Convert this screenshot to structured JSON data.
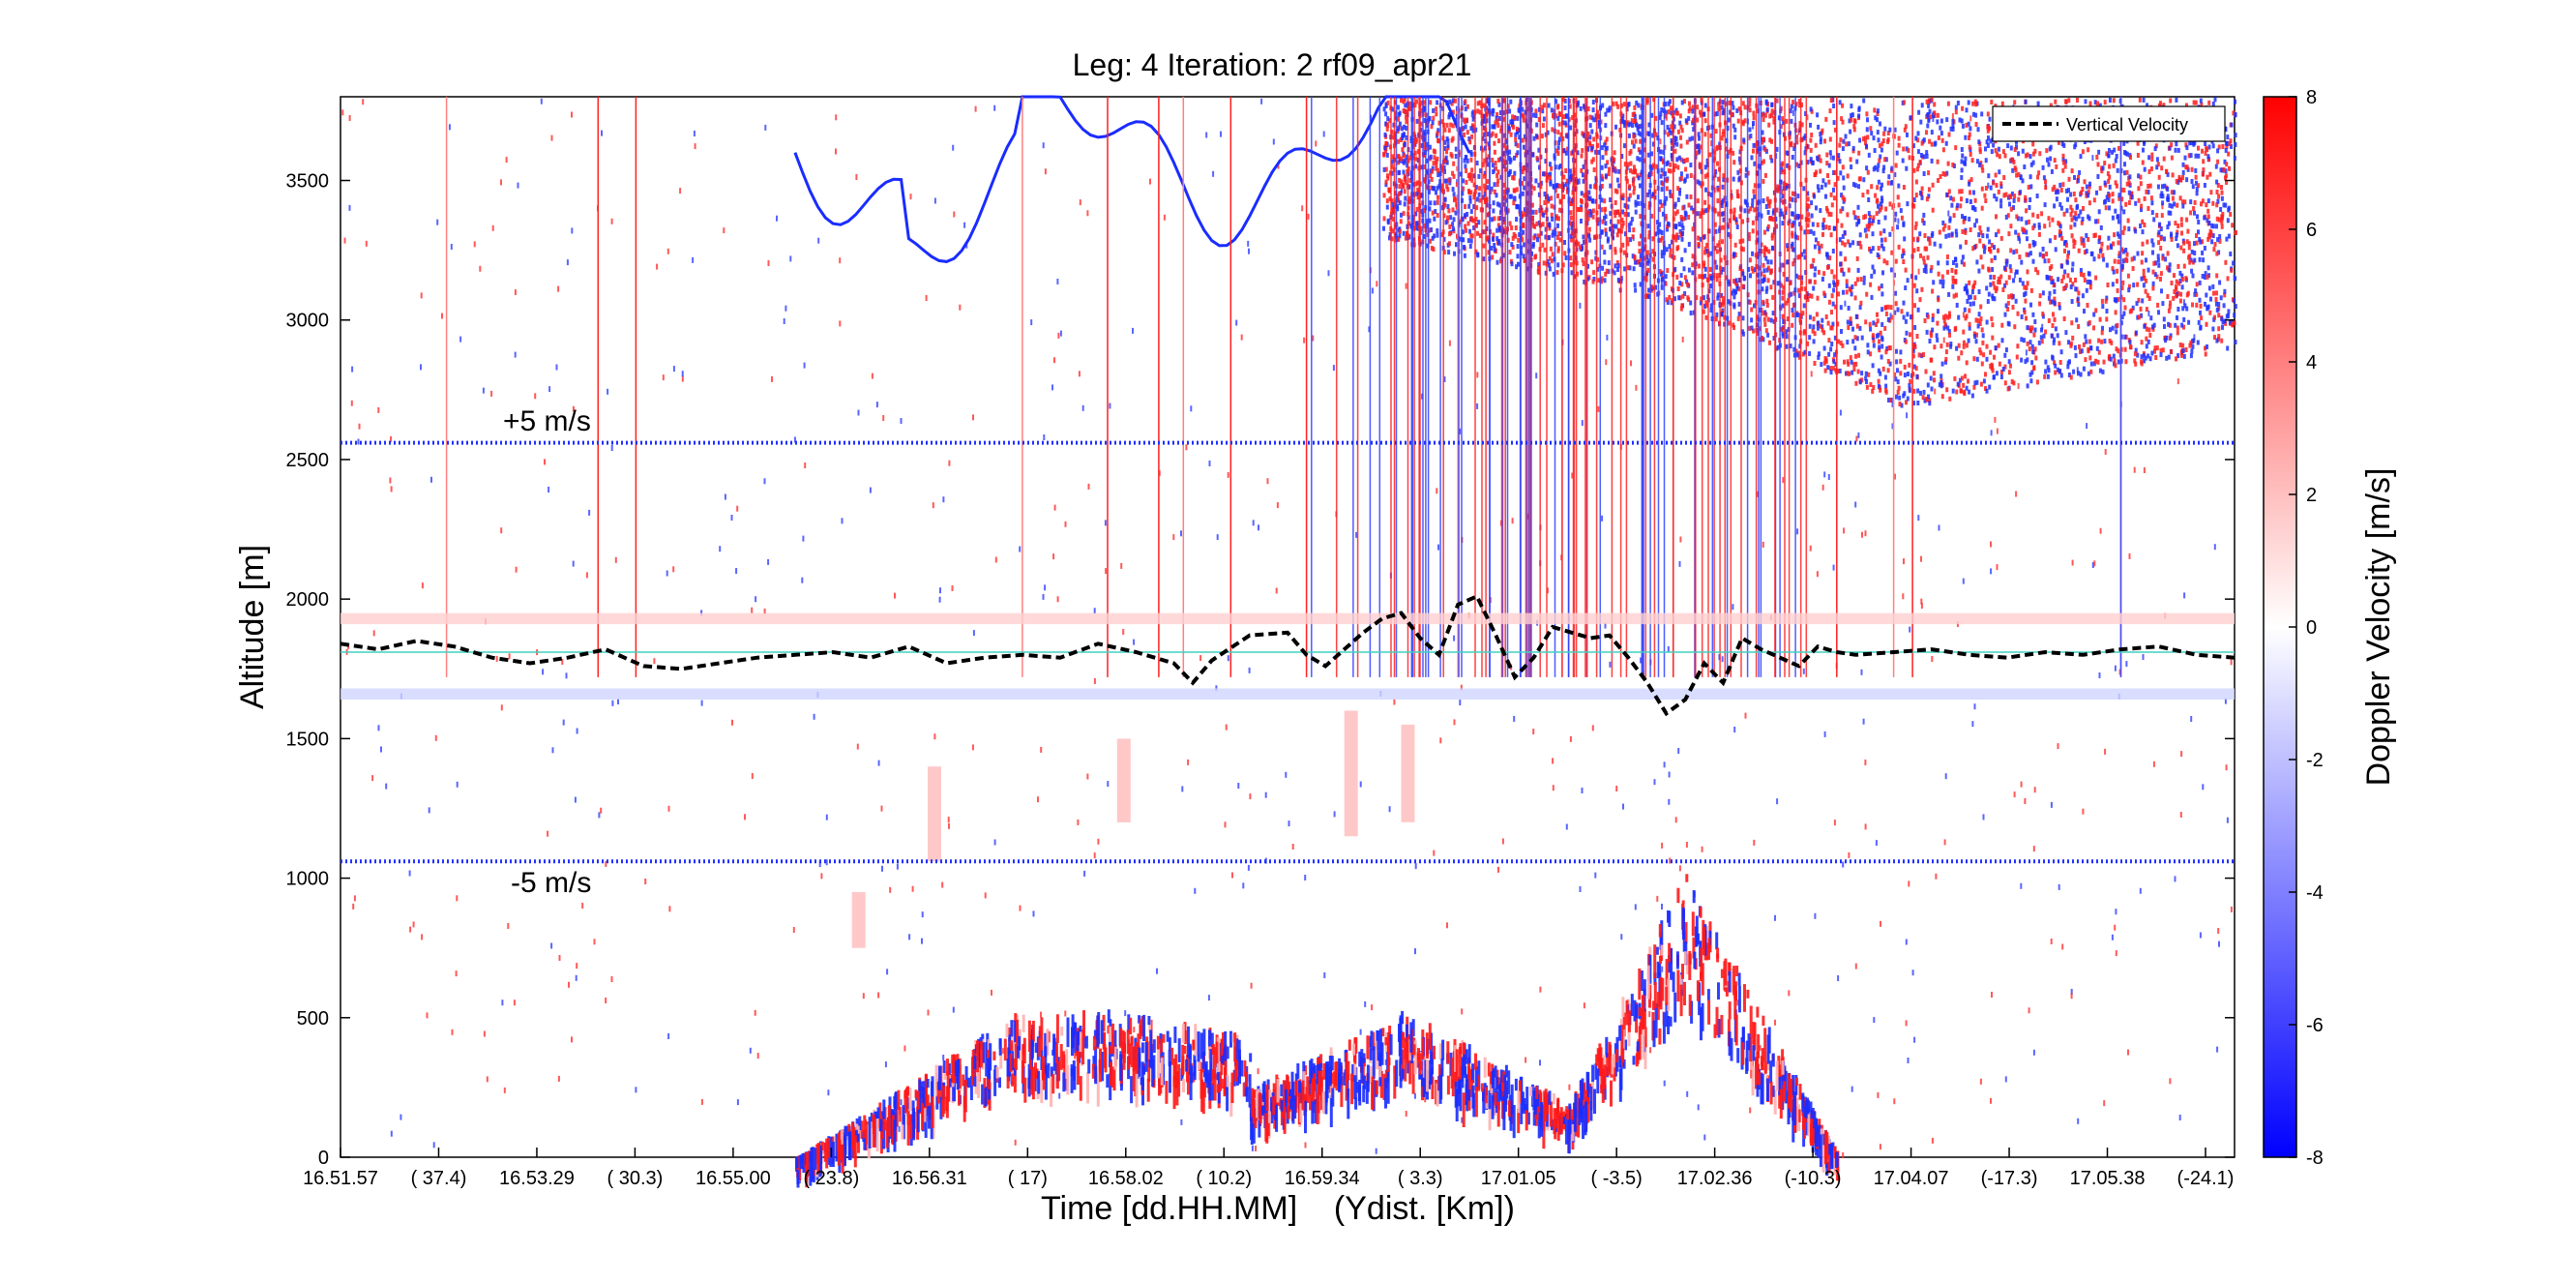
{
  "chart_data": {
    "type": "heatmap",
    "title": "Leg: 4  Iteration: 2  rf09_apr21",
    "xlabel": "Time [dd.HH.MM]    (Ydist. [Km])",
    "ylabel": "Altitude [m]",
    "x_ticks": [
      "16.51.57",
      "( 37.4)",
      "16.53.29",
      "( 30.3)",
      "16.55.00",
      "( 23.8)",
      "16.56.31",
      "(   17)",
      "16.58.02",
      "( 10.2)",
      "16.59.34",
      "(  3.3)",
      "17.01.05",
      "( -3.5)",
      "17.02.36",
      "(-10.3)",
      "17.04.07",
      "(-17.3)",
      "17.05.38",
      "(-24.1)"
    ],
    "y_ticks": [
      "0",
      "500",
      "1000",
      "1500",
      "2000",
      "2500",
      "3000",
      "3500"
    ],
    "ylim": [
      0,
      3800
    ],
    "colorbar": {
      "label": "Doppler Velocity [m/s]",
      "ticks": [
        "8",
        "6",
        "4",
        "2",
        "0",
        "-2",
        "-4",
        "-6",
        "-8"
      ],
      "range": [
        -8,
        8
      ],
      "colors": {
        "high": "#ff0000",
        "mid": "#ffffff",
        "low": "#0000ff"
      }
    },
    "legend": {
      "entries": [
        "Vertical Velocity"
      ],
      "placement": "top-right"
    },
    "annotations": [
      "+5 m/s",
      "-5 m/s"
    ],
    "reference_lines": {
      "upper_dotted_altitude": 2560,
      "lower_dotted_altitude": 1060,
      "flight_level_altitude": 1810
    },
    "vertical_velocity_series": {
      "name": "Vertical Velocity",
      "x_fraction": [
        0.0,
        0.02,
        0.04,
        0.06,
        0.08,
        0.1,
        0.12,
        0.14,
        0.16,
        0.18,
        0.2,
        0.22,
        0.24,
        0.26,
        0.28,
        0.3,
        0.32,
        0.34,
        0.36,
        0.38,
        0.4,
        0.42,
        0.44,
        0.45,
        0.46,
        0.48,
        0.5,
        0.51,
        0.52,
        0.54,
        0.55,
        0.56,
        0.57,
        0.58,
        0.59,
        0.6,
        0.61,
        0.62,
        0.63,
        0.64,
        0.65,
        0.66,
        0.67,
        0.68,
        0.69,
        0.7,
        0.71,
        0.72,
        0.73,
        0.74,
        0.75,
        0.76,
        0.77,
        0.78,
        0.79,
        0.8,
        0.82,
        0.84,
        0.86,
        0.88,
        0.9,
        0.92,
        0.94,
        0.96,
        0.98,
        1.0
      ],
      "altitude": [
        1840,
        1820,
        1850,
        1830,
        1790,
        1770,
        1790,
        1820,
        1760,
        1750,
        1770,
        1790,
        1800,
        1810,
        1790,
        1830,
        1770,
        1790,
        1800,
        1790,
        1840,
        1810,
        1770,
        1700,
        1780,
        1870,
        1880,
        1800,
        1760,
        1880,
        1930,
        1950,
        1860,
        1800,
        1980,
        2010,
        1870,
        1720,
        1790,
        1900,
        1880,
        1860,
        1870,
        1790,
        1700,
        1590,
        1640,
        1770,
        1700,
        1860,
        1820,
        1790,
        1760,
        1830,
        1810,
        1800,
        1810,
        1820,
        1800,
        1790,
        1810,
        1800,
        1820,
        1830,
        1800,
        1790
      ]
    }
  }
}
